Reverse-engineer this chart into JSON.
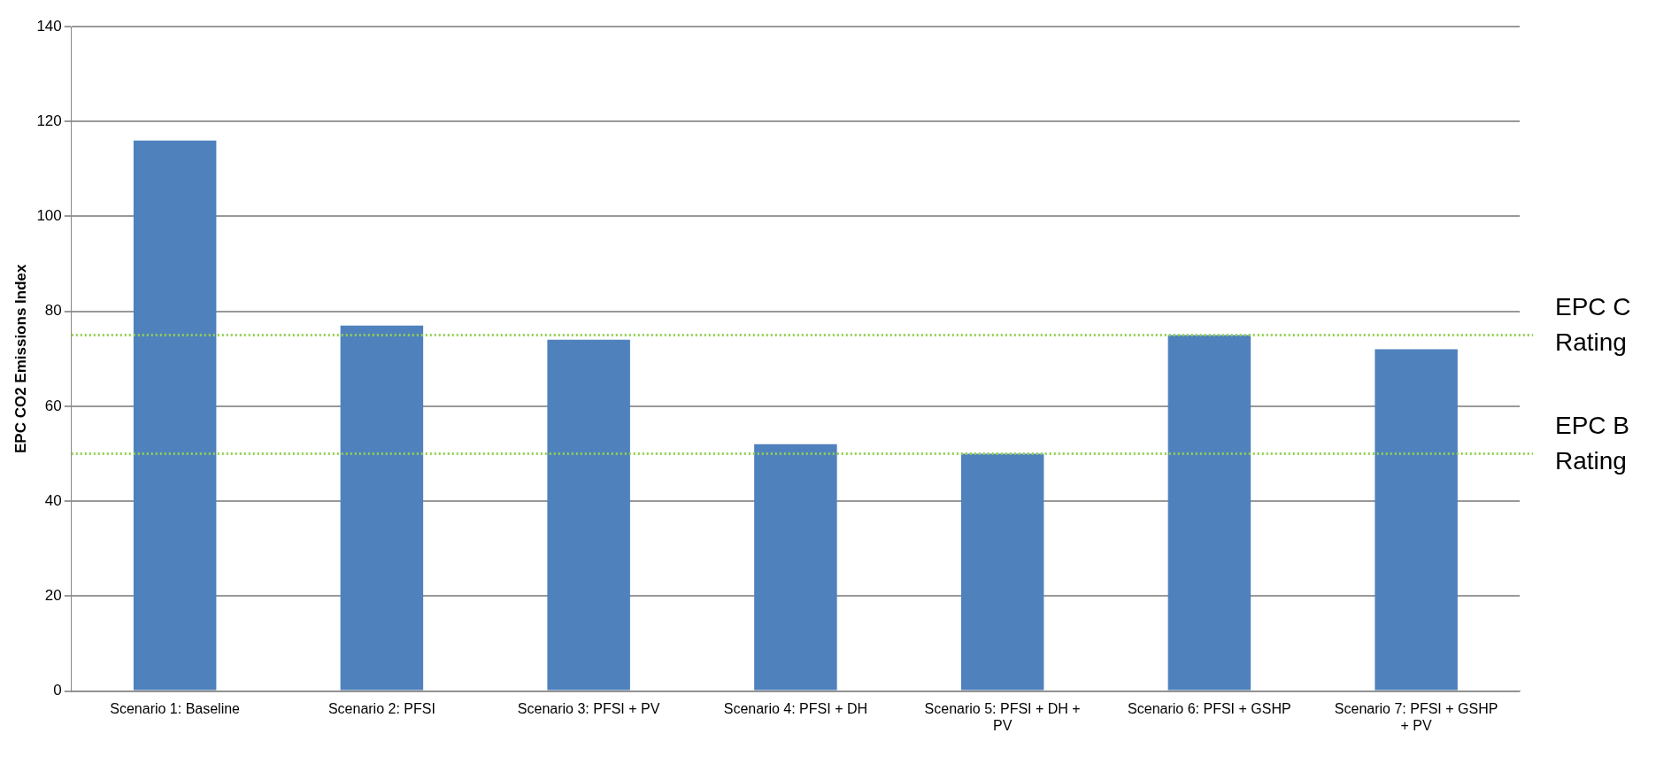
{
  "chart_data": {
    "type": "bar",
    "ylabel": "EPC CO2 Emissions Index",
    "categories": [
      "Scenario 1: Baseline",
      "Scenario 2: PFSI",
      "Scenario 3: PFSI + PV",
      "Scenario 4: PFSI + DH",
      "Scenario 5: PFSI + DH + PV",
      "Scenario 6: PFSI + GSHP",
      "Scenario 7: PFSI + GSHP + PV"
    ],
    "values": [
      116,
      77,
      74,
      52,
      50,
      75,
      72
    ],
    "color": "#4f81bd",
    "ylim": [
      0,
      140
    ],
    "yticks": [
      0,
      20,
      40,
      60,
      80,
      100,
      120,
      140
    ],
    "grid": "y",
    "legend": false,
    "ref_lines": [
      {
        "axis": "y",
        "value": 75,
        "label": "EPC C Rating",
        "color": "#92d050",
        "line_style": "dotted"
      },
      {
        "axis": "y",
        "value": 50,
        "label": "EPC B Rating",
        "color": "#92d050",
        "line_style": "dotted"
      }
    ]
  }
}
